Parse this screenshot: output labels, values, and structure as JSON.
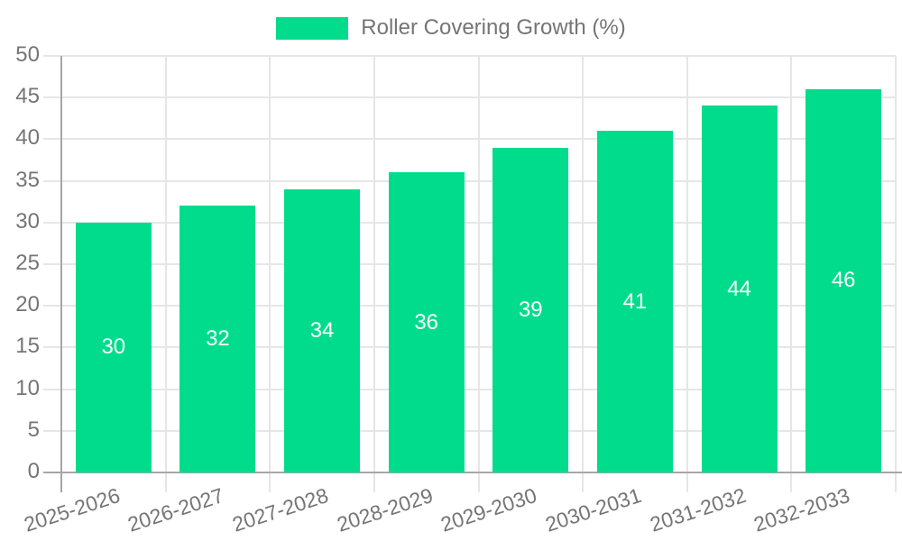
{
  "chart_data": {
    "type": "bar",
    "title": "Roller Covering Growth (%)",
    "legend": {
      "label": "Roller Covering Growth (%)",
      "position": "top"
    },
    "categories": [
      "2025-2026",
      "2026-2027",
      "2027-2028",
      "2028-2029",
      "2029-2030",
      "2030-2031",
      "2031-2032",
      "2032-2033"
    ],
    "values": [
      30,
      32,
      34,
      36,
      39,
      41,
      44,
      46
    ],
    "bar_labels": [
      "30",
      "32",
      "34",
      "36",
      "39",
      "41",
      "44",
      "46"
    ],
    "xlabel": "",
    "ylabel": "",
    "ylim": [
      0,
      50
    ],
    "y_ticks": [
      0,
      5,
      10,
      15,
      20,
      25,
      30,
      35,
      40,
      45,
      50
    ],
    "grid": true,
    "legend_position": "top",
    "colors": {
      "bar": "#00DC8C",
      "grid": "#e6e6e6",
      "axis": "#a6a6a6",
      "tick_text": "#757575",
      "value_label": "#ffffff",
      "background": "#ffffff"
    }
  }
}
